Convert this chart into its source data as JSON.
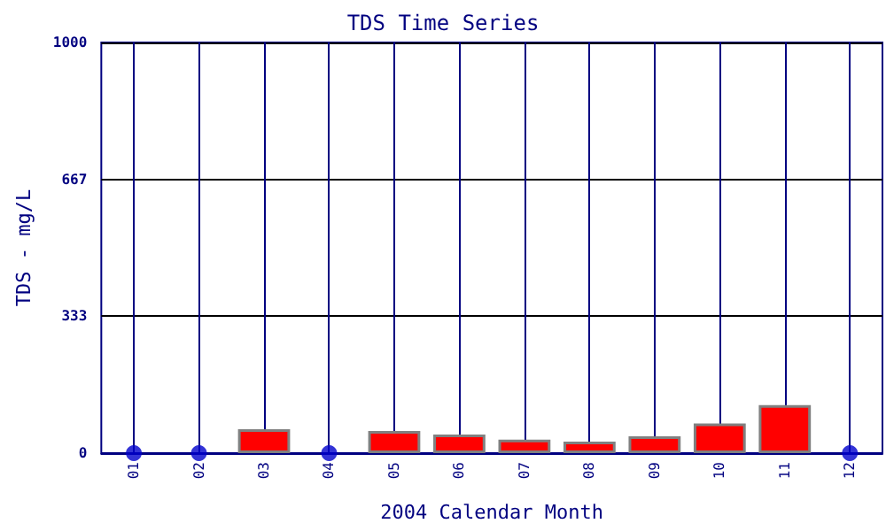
{
  "chart_data": {
    "type": "bar",
    "title": "TDS Time Series",
    "xlabel": "2004 Calendar Month",
    "ylabel": "TDS - mg/L",
    "categories": [
      "01",
      "02",
      "03",
      "04",
      "05",
      "06",
      "07",
      "08",
      "09",
      "10",
      "11",
      "12"
    ],
    "series": [
      {
        "color": "#ff0000",
        "values": [
          null,
          null,
          58,
          null,
          54,
          45,
          33,
          28,
          41,
          72,
          117,
          null
        ]
      },
      {
        "type": "scatter",
        "color": "#0000cc",
        "marker": "circle",
        "x": [
          "01",
          "02",
          "04",
          "12"
        ],
        "values": [
          0,
          0,
          0,
          0
        ]
      }
    ],
    "ylim": [
      0,
      1000
    ],
    "yticks": [
      0,
      333,
      667,
      1000
    ],
    "grid": true
  }
}
